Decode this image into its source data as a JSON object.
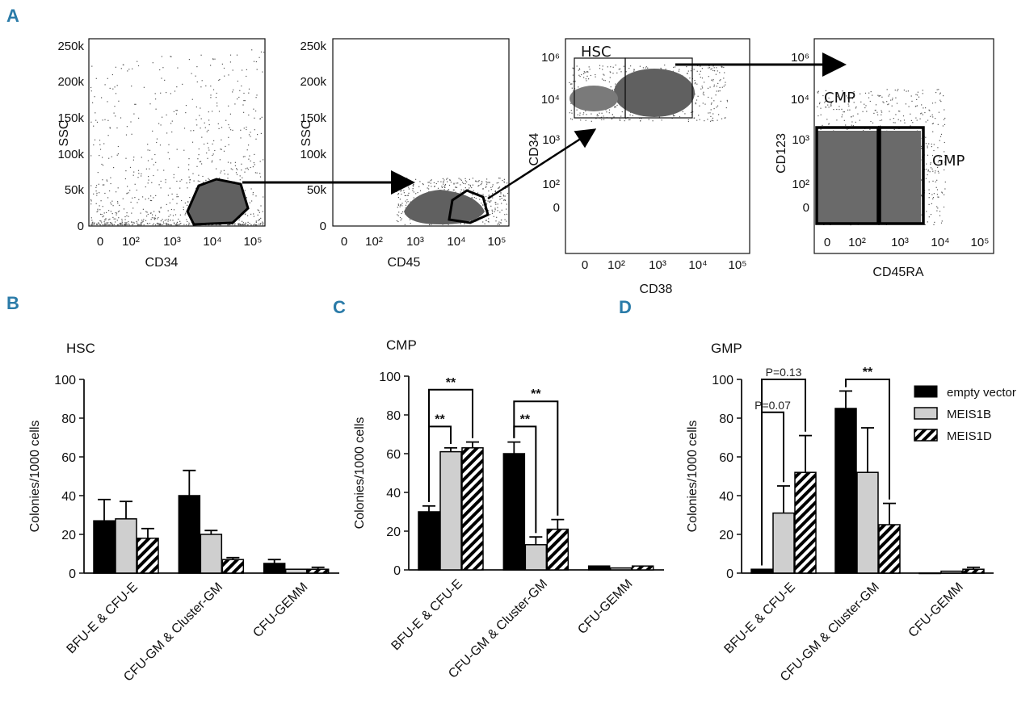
{
  "panels": {
    "A": "A",
    "B": "B",
    "C": "C",
    "D": "D"
  },
  "colors": {
    "empty_vector": "#000000",
    "MEIS1B": "#cfcfcf",
    "MEIS1D": "hatched",
    "axis": "#111111",
    "accent_letter": "#2a7ba8",
    "events": "#555555"
  },
  "flow": {
    "plots": [
      {
        "xlabel": "CD34",
        "ylabel": "SSC",
        "xticks": [
          "0",
          "10²",
          "10³",
          "10⁴",
          "10⁵"
        ],
        "yticks": [
          "0",
          "50k",
          "100k",
          "150k",
          "200k",
          "250k"
        ]
      },
      {
        "xlabel": "CD45",
        "ylabel": "SSC",
        "xticks": [
          "0",
          "10²",
          "10³",
          "10⁴",
          "10⁵"
        ],
        "yticks": [
          "0",
          "50k",
          "100k",
          "150k",
          "200k",
          "250k"
        ]
      },
      {
        "xlabel": "CD38",
        "ylabel": "CD34",
        "xticks": [
          "0",
          "10²",
          "10³",
          "10⁴",
          "10⁵"
        ],
        "yticks": [
          "0",
          "10²",
          "10³",
          "10⁴",
          "10⁶"
        ],
        "gate": "HSC"
      },
      {
        "xlabel": "CD45RA",
        "ylabel": "CD123",
        "xticks": [
          "0",
          "10²",
          "10³",
          "10⁴",
          "10⁵"
        ],
        "yticks": [
          "0",
          "10²",
          "10³",
          "10⁴",
          "10⁶"
        ],
        "gates": [
          "CMP",
          "GMP"
        ]
      }
    ]
  },
  "legend": [
    "empty vector",
    "MEIS1B",
    "MEIS1D"
  ],
  "chart_data": [
    {
      "type": "bar",
      "panel": "B",
      "title": "HSC",
      "categories": [
        "BFU-E & CFU-E",
        "CFU-GM & Cluster-GM",
        "CFU-GEMM"
      ],
      "series": [
        {
          "name": "empty vector",
          "values": [
            27,
            40,
            5
          ],
          "errors": [
            11,
            13,
            2
          ]
        },
        {
          "name": "MEIS1B",
          "values": [
            28,
            20,
            2
          ],
          "errors": [
            9,
            2,
            0
          ]
        },
        {
          "name": "MEIS1D",
          "values": [
            18,
            7,
            2
          ],
          "errors": [
            5,
            1,
            1
          ]
        }
      ],
      "ylabel": "Colonies/1000 cells",
      "ylim": [
        0,
        100
      ],
      "yticks": [
        "0",
        "20",
        "40",
        "60",
        "80",
        "100"
      ],
      "annotations": []
    },
    {
      "type": "bar",
      "panel": "C",
      "title": "CMP",
      "categories": [
        "BFU-E & CFU-E",
        "CFU-GM & Cluster-GM",
        "CFU-GEMM"
      ],
      "series": [
        {
          "name": "empty vector",
          "values": [
            30,
            60,
            2
          ],
          "errors": [
            3,
            6,
            0
          ]
        },
        {
          "name": "MEIS1B",
          "values": [
            61,
            13,
            1
          ],
          "errors": [
            2,
            4,
            0
          ]
        },
        {
          "name": "MEIS1D",
          "values": [
            63,
            21,
            2
          ],
          "errors": [
            3,
            5,
            0
          ]
        }
      ],
      "ylabel": "Colonies/1000 cells",
      "ylim": [
        0,
        100
      ],
      "yticks": [
        "0",
        "20",
        "40",
        "60",
        "80",
        "100"
      ],
      "annotations": [
        {
          "text": "**",
          "cat": 0,
          "from": 0,
          "to": 1,
          "y": 74,
          "drop": [
            2,
            2
          ]
        },
        {
          "text": "**",
          "cat": 0,
          "from": 0,
          "to": 2,
          "y": 93,
          "drop": [
            2,
            2
          ]
        },
        {
          "text": "**",
          "cat": 1,
          "from": 0,
          "to": 1,
          "y": 74,
          "drop": [
            2,
            2
          ]
        },
        {
          "text": "**",
          "cat": 1,
          "from": 0,
          "to": 2,
          "y": 87,
          "drop": [
            2,
            2
          ]
        }
      ]
    },
    {
      "type": "bar",
      "panel": "D",
      "title": "GMP",
      "categories": [
        "BFU-E & CFU-E",
        "CFU-GM & Cluster-GM",
        "CFU-GEMM"
      ],
      "series": [
        {
          "name": "empty vector",
          "values": [
            2,
            85,
            0
          ],
          "errors": [
            0,
            9,
            0
          ]
        },
        {
          "name": "MEIS1B",
          "values": [
            31,
            52,
            1
          ],
          "errors": [
            14,
            23,
            0
          ]
        },
        {
          "name": "MEIS1D",
          "values": [
            52,
            25,
            2
          ],
          "errors": [
            19,
            11,
            1
          ]
        }
      ],
      "ylabel": "Colonies/1000 cells",
      "ylim": [
        0,
        100
      ],
      "yticks": [
        "0",
        "20",
        "40",
        "60",
        "80",
        "100"
      ],
      "annotations": [
        {
          "text": "P=0.07",
          "cat": 0,
          "from": 0,
          "to": 1,
          "y": 83,
          "drop": [
            2,
            2
          ]
        },
        {
          "text": "P=0.13",
          "cat": 0,
          "from": 0,
          "to": 2,
          "y": 100,
          "drop": [
            2,
            2
          ]
        },
        {
          "text": "**",
          "cat": 1,
          "from": 0,
          "to": 2,
          "y": 100,
          "drop": [
            2,
            2
          ]
        }
      ]
    }
  ]
}
